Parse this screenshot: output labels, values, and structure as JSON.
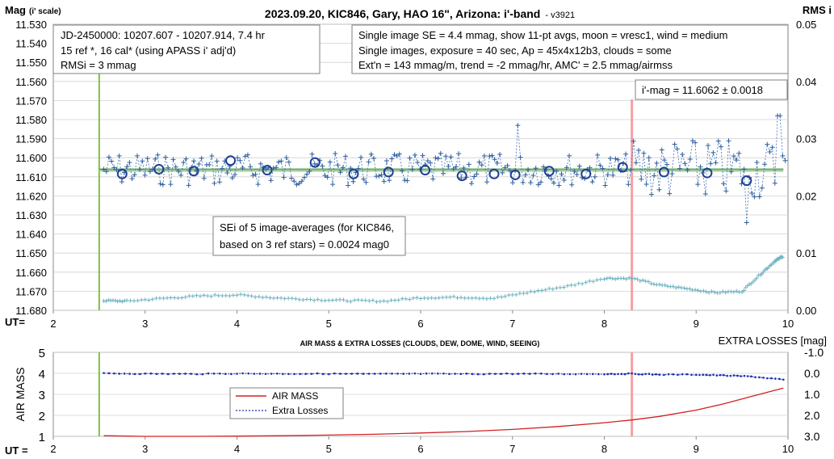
{
  "chart_data": [
    {
      "type": "scatter",
      "title": "2023.09.20, KIC846, Gary, HAO 16\", Arizona: i'-band",
      "version": "v3921",
      "ylabel_main": "Mag",
      "ylabel_sub": "(i' scale)",
      "y2label": "RMS i",
      "xlabel": "UT=",
      "xlim": [
        2,
        10
      ],
      "ylim": [
        11.68,
        11.53
      ],
      "y2lim": [
        0,
        0.05
      ],
      "x_ticks": [
        "2",
        "3",
        "4",
        "5",
        "6",
        "7",
        "8",
        "9",
        "10"
      ],
      "y_ticks": [
        "11.530",
        "11.540",
        "11.550",
        "11.560",
        "11.570",
        "11.580",
        "11.590",
        "11.600",
        "11.610",
        "11.620",
        "11.630",
        "11.640",
        "11.650",
        "11.660",
        "11.670",
        "11.680"
      ],
      "y2_ticks": [
        "0.05",
        "0.04",
        "0.03",
        "0.02",
        "0.01",
        "0.00"
      ],
      "annotations": {
        "box_left": [
          "JD-2450000: 10207.607 - 10207.914, 7.4  hr",
          "15 ref *, 16 cal* (using APASS i' adj'd)",
          "RMSi = 3 mmag"
        ],
        "box_right": [
          "Single image SE = 4.4 mmag, show 11-pt avgs, moon = vresc1, wind = medium",
          "Single images, exposure = 40 sec, Ap = 45x4x12b3, clouds = some",
          "Ext'n = 143 mmag/m, trend = -2 mmag/hr, AMC' = 2.5 mmag/airmss"
        ],
        "imag": "i'-mag = 11.6062 ± 0.0018",
        "sei": [
          "SEi of 5 image-averages (for KIC846,",
          "based on 3 ref stars) = 0.0024 mag0"
        ]
      },
      "fit_level": 11.6062,
      "start_marker_x": 2.5,
      "ingress_marker_x": 8.3,
      "averages": {
        "x": [
          2.75,
          3.15,
          3.53,
          3.93,
          4.33,
          4.85,
          5.27,
          5.65,
          6.05,
          6.45,
          6.8,
          7.03,
          7.4,
          7.8,
          8.2,
          8.65,
          9.12,
          9.55
        ],
        "y": [
          11.6085,
          11.606,
          11.607,
          11.6015,
          11.6065,
          11.6025,
          11.6085,
          11.6075,
          11.6065,
          11.6095,
          11.6085,
          11.609,
          11.607,
          11.6085,
          11.605,
          11.6075,
          11.608,
          11.612
        ]
      },
      "individual_points_note": "Single-image magnitudes (+ markers): ~11.600–11.620 scatter around 11.606, wider scatter after UT 8.3",
      "rms_series": {
        "x": [
          2.55,
          2.8,
          3.2,
          3.6,
          4.0,
          4.4,
          4.8,
          5.2,
          5.6,
          6.0,
          6.4,
          6.8,
          7.2,
          7.6,
          8.0,
          8.3,
          8.6,
          8.9,
          9.2,
          9.5,
          9.7,
          9.85,
          9.95
        ],
        "y": [
          0.0017,
          0.0016,
          0.0021,
          0.0025,
          0.0027,
          0.0022,
          0.0019,
          0.0017,
          0.0016,
          0.0022,
          0.0023,
          0.0021,
          0.0032,
          0.0042,
          0.0056,
          0.0056,
          0.0044,
          0.0038,
          0.0031,
          0.0033,
          0.0063,
          0.0085,
          0.0095
        ]
      }
    },
    {
      "type": "line",
      "title": "AIR MASS & EXTRA LOSSES (CLOUDS, DEW, DOME, WIND, SEEING)",
      "ylabel": "AIR MASS",
      "y2label": "EXTRA LOSSES [mag]",
      "xlabel": "UT =",
      "xlim": [
        2,
        10
      ],
      "ylim": [
        1,
        5
      ],
      "y2lim": [
        3.0,
        -1.0
      ],
      "x_ticks": [
        "2",
        "3",
        "4",
        "5",
        "6",
        "7",
        "8",
        "9",
        "10"
      ],
      "y_ticks": [
        "5",
        "4",
        "3",
        "2",
        "1"
      ],
      "y2_ticks": [
        "-1.0",
        "0.0",
        "1.0",
        "2.0",
        "3.0"
      ],
      "series": [
        {
          "name": "AIR MASS",
          "color": "#d42020",
          "x": [
            2.55,
            3.0,
            3.5,
            4.0,
            4.5,
            5.0,
            5.5,
            6.0,
            6.5,
            7.0,
            7.5,
            8.0,
            8.3,
            8.6,
            9.0,
            9.3,
            9.6,
            9.95
          ],
          "y": [
            1.03,
            1.0,
            1.0,
            1.01,
            1.03,
            1.06,
            1.1,
            1.16,
            1.23,
            1.33,
            1.47,
            1.65,
            1.78,
            1.95,
            2.25,
            2.55,
            2.9,
            3.3
          ]
        },
        {
          "name": "Extra Losses",
          "color": "#1a2fb0",
          "x": [
            2.55,
            3.0,
            3.5,
            4.0,
            4.5,
            5.0,
            5.5,
            6.0,
            6.5,
            7.0,
            7.5,
            8.0,
            8.3,
            8.6,
            9.0,
            9.3,
            9.6,
            9.95
          ],
          "y": [
            0.0,
            0.02,
            0.03,
            0.01,
            0.02,
            0.02,
            0.03,
            0.02,
            0.03,
            0.02,
            0.03,
            0.03,
            0.02,
            0.06,
            0.06,
            0.1,
            0.15,
            0.3
          ]
        }
      ],
      "start_marker_x": 2.5,
      "ingress_marker_x": 8.3,
      "legend_position": "center-left"
    }
  ]
}
